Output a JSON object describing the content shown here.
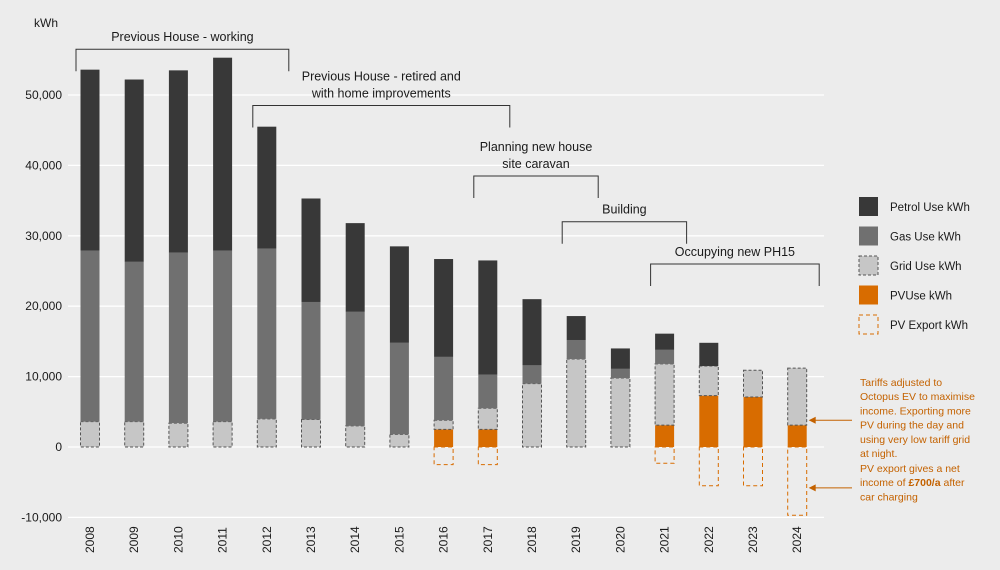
{
  "chart_data": {
    "type": "bar",
    "stacked": true,
    "ylabel": "kWh",
    "ylim": [
      -10000,
      60000
    ],
    "yticks": [
      -10000,
      0,
      10000,
      20000,
      30000,
      40000,
      50000
    ],
    "ytick_labels": [
      "-10,000",
      "0",
      "10,000",
      "20,000",
      "30,000",
      "40,000",
      "50,000"
    ],
    "grid": true,
    "categories": [
      "2008",
      "2009",
      "2010",
      "2011",
      "2012",
      "2013",
      "2014",
      "2015",
      "2016",
      "2017",
      "2018",
      "2019",
      "2020",
      "2021",
      "2022",
      "2023",
      "2024"
    ],
    "series": [
      {
        "name": "PV Export kWh",
        "key": "pvexport",
        "values": [
          0,
          0,
          0,
          0,
          0,
          0,
          0,
          0,
          -2500,
          -2500,
          0,
          0,
          0,
          -2300,
          -5500,
          -5500,
          -9700
        ]
      },
      {
        "name": "PVUse kWh",
        "key": "pvuse",
        "values": [
          0,
          0,
          0,
          0,
          0,
          0,
          0,
          0,
          2500,
          2500,
          0,
          0,
          0,
          3100,
          7300,
          7100,
          3100
        ]
      },
      {
        "name": "Grid Use kWh",
        "key": "grid",
        "values": [
          3600,
          3600,
          3400,
          3600,
          4000,
          3900,
          3000,
          1800,
          1300,
          3000,
          9000,
          12500,
          9800,
          8700,
          4200,
          3800,
          8100
        ]
      },
      {
        "name": "Gas Use kWh",
        "key": "gas",
        "values": [
          24300,
          22700,
          24200,
          24300,
          24200,
          16700,
          16200,
          13000,
          9000,
          4800,
          2600,
          2700,
          1300,
          2000,
          0,
          0,
          0
        ]
      },
      {
        "name": "Petrol Use kWh",
        "key": "petrol",
        "values": [
          25700,
          25900,
          25900,
          27400,
          17300,
          14700,
          12600,
          13700,
          13900,
          16200,
          9400,
          3400,
          2900,
          2300,
          3300,
          0,
          0
        ]
      }
    ],
    "legend": {
      "placement": "right",
      "items": [
        {
          "label": "Petrol Use kWh",
          "key": "petrol"
        },
        {
          "label": "Gas Use kWh",
          "key": "gas"
        },
        {
          "label": "Grid Use kWh",
          "key": "grid"
        },
        {
          "label": "PVUse kWh",
          "key": "pvuse"
        },
        {
          "label": "PV Export kWh",
          "key": "pvexport"
        }
      ]
    },
    "annotations": [
      {
        "lines": [
          "Previous House - working"
        ],
        "from": "2008",
        "to": "2012",
        "level": 56500
      },
      {
        "lines": [
          "Previous House - retired and",
          "with home improvements"
        ],
        "from": "2012",
        "to": "2017",
        "level": 48500
      },
      {
        "lines": [
          "Planning new house",
          "site caravan"
        ],
        "from": "2017",
        "to": "2019",
        "level": 38500
      },
      {
        "lines": [
          "Building"
        ],
        "from": "2019",
        "to": "2021",
        "level": 32000
      },
      {
        "lines": [
          "Occupying new PH15"
        ],
        "from": "2021",
        "to": "2024",
        "level": 26000
      }
    ],
    "notes": [
      {
        "lines": [
          "Tariffs adjusted to",
          "Octopus EV to maximise",
          "income. Exporting more",
          "PV during the day and",
          "using very low tariff grid",
          "at night."
        ],
        "arrow_to": "2024",
        "arrow_value": 3800
      },
      {
        "lines": [
          "PV export gives a net",
          "income of £700/a after",
          "car charging"
        ],
        "bold_phrase": "£700/a",
        "arrow_to": "2024",
        "arrow_value": -5800
      }
    ]
  },
  "colors": {
    "background": "#ececec",
    "gridline": "#ffffff",
    "petrol": "#383838",
    "gas": "#707070",
    "grid_fill": "#c6c6c6",
    "grid_stroke": "#555555",
    "pvuse": "#d86c00",
    "pvexport_stroke": "#d86c00",
    "bracket": "#333333",
    "note": "#c46200"
  }
}
